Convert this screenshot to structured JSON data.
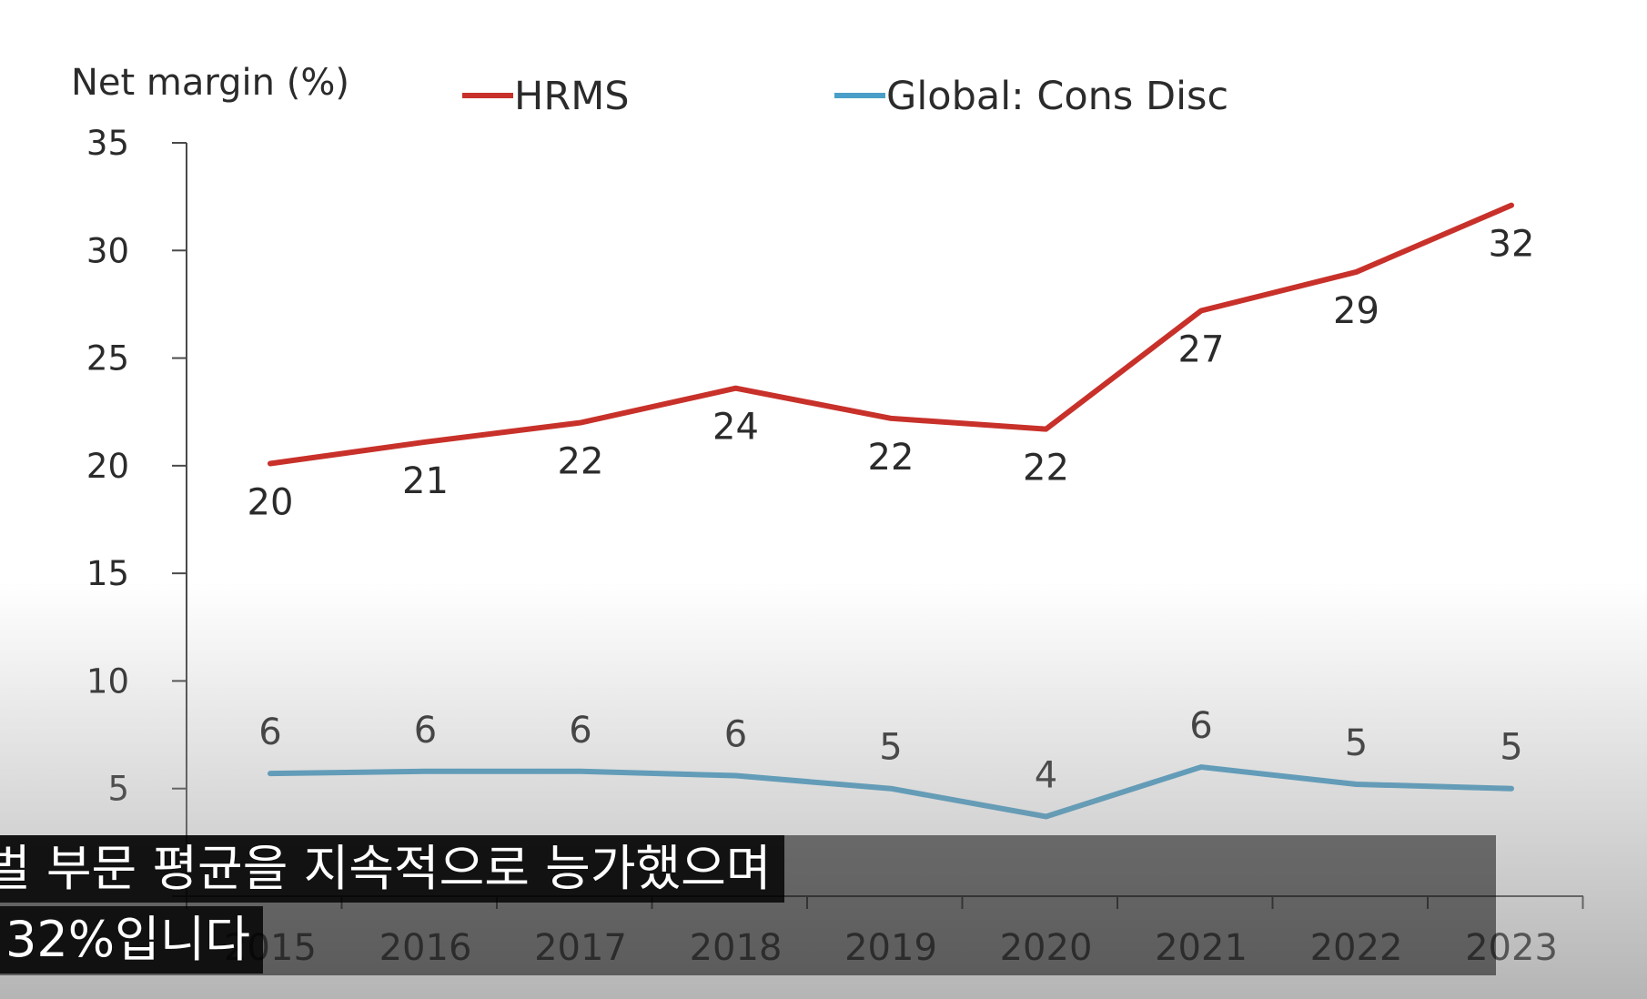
{
  "chart_data": {
    "type": "line",
    "ylabel": "Net margin (%)",
    "xlabel": "",
    "ylim": [
      0,
      35
    ],
    "yticks": [
      0,
      5,
      10,
      15,
      20,
      25,
      30,
      35
    ],
    "ytick_labels": [
      "",
      "5",
      "10",
      "15",
      "20",
      "25",
      "30",
      "35"
    ],
    "categories": [
      "2015",
      "2016",
      "2017",
      "2018",
      "2019",
      "2020",
      "2021",
      "2022",
      "2023"
    ],
    "legend_position": "top",
    "grid": false,
    "series": [
      {
        "name": "HRMS",
        "color": "#c8312a",
        "values": [
          20.1,
          21.1,
          22.0,
          23.6,
          22.2,
          21.7,
          27.2,
          29.0,
          32.1
        ],
        "labels": [
          "20",
          "21",
          "22",
          "24",
          "22",
          "22",
          "27",
          "29",
          "32"
        ],
        "label_position": "below"
      },
      {
        "name": "Global: Cons Disc",
        "color": "#4a9fc8",
        "values": [
          5.7,
          5.8,
          5.8,
          5.6,
          5.0,
          3.7,
          6.0,
          5.2,
          5.0
        ],
        "labels": [
          "6",
          "6",
          "6",
          "6",
          "5",
          "4",
          "6",
          "5",
          "5"
        ],
        "label_position": "above"
      }
    ]
  },
  "subtitles": {
    "line1": "벌 부문 평균을 지속적으로 능가했으며",
    "line2": "32%입니다"
  }
}
